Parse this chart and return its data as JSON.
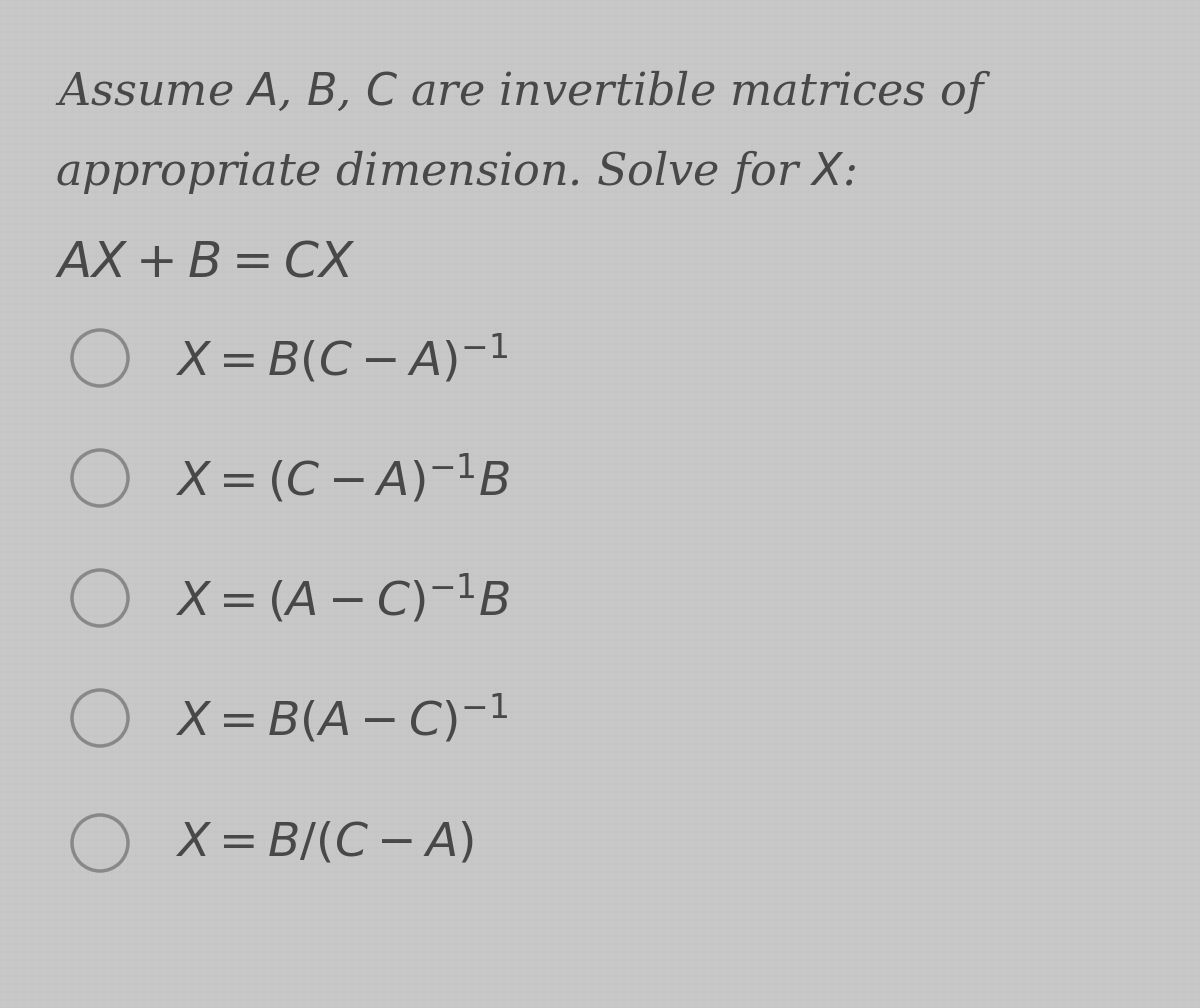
{
  "background_color": "#c8c8c8",
  "text_color": "#484848",
  "circle_color": "#888888",
  "title_line1": "Assume $\\mathit{A}$, $\\mathit{B}$, $\\mathit{C}$ are invertible matrices of",
  "title_line2": "appropriate dimension. Solve for $\\mathit{X}$:",
  "equation": "$\\mathit{AX} + \\mathit{B} = \\mathit{CX}$",
  "options": [
    "$\\mathit{X} = \\mathit{B}(\\mathit{C} - \\mathit{A})^{-1}$",
    "$\\mathit{X} = (\\mathit{C} - \\mathit{A})^{-1}\\mathit{B}$",
    "$\\mathit{X} = (\\mathit{A} - \\mathit{C})^{-1}\\mathit{B}$",
    "$\\mathit{X} = \\mathit{B}(\\mathit{A} - \\mathit{C})^{-1}$",
    "$\\mathit{X} = \\mathit{B}/(\\mathit{C} - \\mathit{A})$"
  ],
  "figsize": [
    12,
    10.08
  ],
  "dpi": 100,
  "title_fontsize": 32,
  "eq_fontsize": 36,
  "option_fontsize": 34
}
